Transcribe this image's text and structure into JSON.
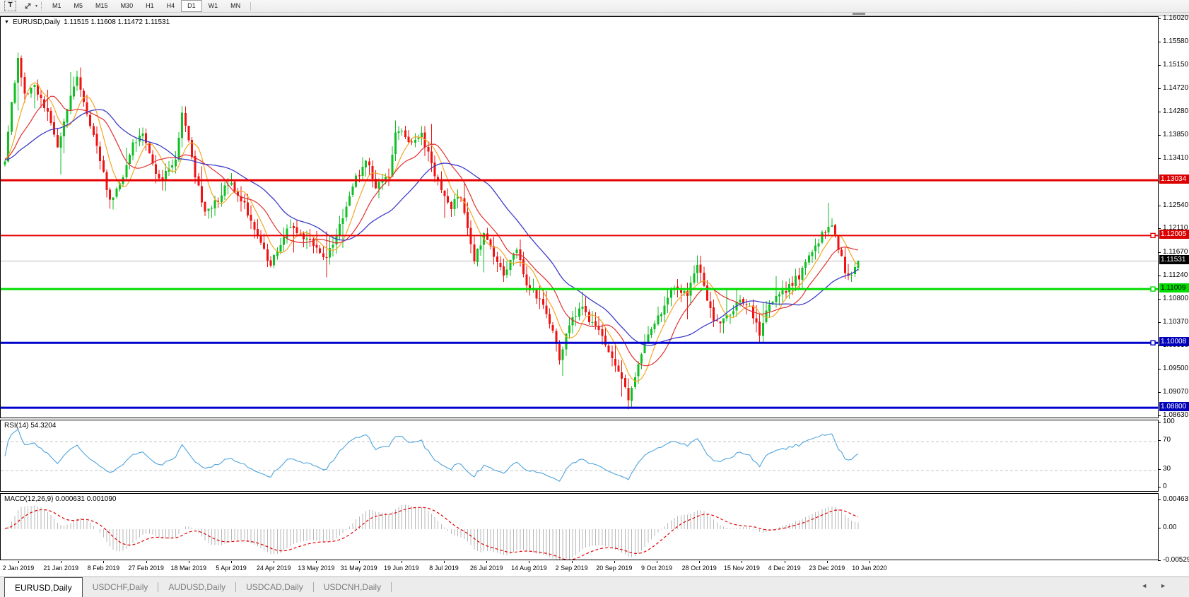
{
  "toolbar": {
    "text_tool_label": "T",
    "timeframes": [
      "M1",
      "M5",
      "M15",
      "M30",
      "H1",
      "H4",
      "D1",
      "W1",
      "MN"
    ],
    "active_timeframe": "D1"
  },
  "icons": {
    "chart_menu_icon": "▼",
    "dropdown_caret_icon": "▾",
    "tab_prev_icon": "◄",
    "tab_next_icon": "►"
  },
  "chart_header": {
    "symbol_label": "EURUSD,Daily",
    "ohlc_label": "1.11515 1.11608 1.11472 1.11531"
  },
  "price_axis": {
    "ticks": [
      "1.16020",
      "1.15580",
      "1.15150",
      "1.14720",
      "1.14280",
      "1.13850",
      "1.13410",
      "1.12980",
      "1.12540",
      "1.12110",
      "1.11670",
      "1.11240",
      "1.10800",
      "1.10370",
      "1.09930",
      "1.09500",
      "1.09070",
      "1.08630"
    ]
  },
  "hlines": [
    {
      "label": "1.13034",
      "value": 1.13034,
      "color": "#e60000",
      "label_bg": "#dd0000",
      "label_fg": "#ffffff",
      "thickness": 3,
      "handle": false
    },
    {
      "label": "1.12005",
      "value": 1.12005,
      "color": "#e60000",
      "label_bg": "#dd0000",
      "label_fg": "#ffffff",
      "thickness": 2,
      "handle": true
    },
    {
      "label": "1.11009",
      "value": 1.11009,
      "color": "#00dd00",
      "label_bg": "#00dd00",
      "label_fg": "#000000",
      "thickness": 3,
      "handle": true
    },
    {
      "label": "1.10008",
      "value": 1.10008,
      "color": "#0000cc",
      "label_bg": "#0000bb",
      "label_fg": "#ffffff",
      "thickness": 3,
      "handle": true
    },
    {
      "label": "1.08800",
      "value": 1.088,
      "color": "#0000cc",
      "label_bg": "#0000bb",
      "label_fg": "#ffffff",
      "thickness": 3,
      "handle": false
    }
  ],
  "current_price": {
    "label": "1.11531",
    "value": 1.11531,
    "label_bg": "#000000",
    "label_fg": "#ffffff",
    "line_color": "#b8b8b8"
  },
  "rsi": {
    "name_label": "RSI(14) 54.3204",
    "levels": [
      {
        "text": "100",
        "value": 100
      },
      {
        "text": "70",
        "value": 70
      },
      {
        "text": "30",
        "value": 30
      },
      {
        "text": "0",
        "value": 0
      }
    ],
    "dashed_levels": [
      70,
      30
    ],
    "line_color": "#4fa3dc"
  },
  "macd": {
    "name_label": "MACD(12,26,9) 0.000631 0.001090",
    "axis_labels": [
      {
        "text": "0.00463",
        "value": 0.00463
      },
      {
        "text": "0.00",
        "value": 0
      },
      {
        "text": "-0.005299",
        "value": -0.005299
      }
    ],
    "histogram_color": "#b7b7b7",
    "signal_color": "#e00000"
  },
  "date_axis": {
    "labels": [
      "2 Jan 2019",
      "21 Jan 2019",
      "8 Feb 2019",
      "27 Feb 2019",
      "18 Mar 2019",
      "5 Apr 2019",
      "24 Apr 2019",
      "13 May 2019",
      "31 May 2019",
      "19 Jun 2019",
      "8 Jul 2019",
      "26 Jul 2019",
      "14 Aug 2019",
      "2 Sep 2019",
      "20 Sep 2019",
      "9 Oct 2019",
      "28 Oct 2019",
      "15 Nov 2019",
      "4 Dec 2019",
      "23 Dec 2019",
      "10 Jan 2020"
    ]
  },
  "tabs": {
    "items": [
      "EURUSD,Daily",
      "USDCHF,Daily",
      "AUDUSD,Daily",
      "USDCAD,Daily",
      "USDCNH,Daily"
    ],
    "active": "EURUSD,Daily"
  },
  "chart_data": {
    "type": "candlestick",
    "symbol": "EURUSD",
    "timeframe": "Daily",
    "visible_range": [
      "2 Jan 2019",
      "10 Jan 2020"
    ],
    "current_ohlc": {
      "open": 1.11515,
      "high": 1.11608,
      "low": 1.11472,
      "close": 1.11531
    },
    "price_range_shown": [
      1.0863,
      1.1602
    ],
    "up_color": "#0fbf23",
    "down_color": "#f01111",
    "ma_lines": [
      {
        "name": "fast-ma",
        "period": 7,
        "color": "#f5a623"
      },
      {
        "name": "mid-ma",
        "period": 14,
        "color": "#e03030"
      },
      {
        "name": "slow-ma",
        "period": 30,
        "color": "#3c3cc8"
      }
    ],
    "warmup_days": 40,
    "price_anchors": [
      [
        0,
        1.132
      ],
      [
        10,
        1.1355
      ],
      [
        20,
        1.133
      ],
      [
        30,
        1.1345
      ],
      [
        40,
        1.134
      ],
      [
        42,
        1.1445
      ],
      [
        44,
        1.1525
      ],
      [
        46,
        1.1465
      ],
      [
        49,
        1.148
      ],
      [
        53,
        1.1425
      ],
      [
        56,
        1.136
      ],
      [
        59,
        1.144
      ],
      [
        62,
        1.15
      ],
      [
        66,
        1.1405
      ],
      [
        69,
        1.134
      ],
      [
        72,
        1.1262
      ],
      [
        75,
        1.1295
      ],
      [
        79,
        1.137
      ],
      [
        82,
        1.1385
      ],
      [
        85,
        1.133
      ],
      [
        88,
        1.1305
      ],
      [
        92,
        1.134
      ],
      [
        94,
        1.1435
      ],
      [
        96,
        1.1375
      ],
      [
        98,
        1.131
      ],
      [
        101,
        1.1245
      ],
      [
        105,
        1.1265
      ],
      [
        108,
        1.13
      ],
      [
        111,
        1.128
      ],
      [
        114,
        1.1245
      ],
      [
        118,
        1.1185
      ],
      [
        121,
        1.1145
      ],
      [
        124,
        1.1185
      ],
      [
        127,
        1.122
      ],
      [
        131,
        1.12
      ],
      [
        134,
        1.1185
      ],
      [
        137,
        1.1155
      ],
      [
        140,
        1.1185
      ],
      [
        144,
        1.1255
      ],
      [
        147,
        1.1305
      ],
      [
        150,
        1.134
      ],
      [
        153,
        1.1295
      ],
      [
        157,
        1.1315
      ],
      [
        159,
        1.139
      ],
      [
        161,
        1.14
      ],
      [
        164,
        1.137
      ],
      [
        167,
        1.139
      ],
      [
        170,
        1.133
      ],
      [
        173,
        1.128
      ],
      [
        176,
        1.1255
      ],
      [
        179,
        1.1275
      ],
      [
        183,
        1.1155
      ],
      [
        186,
        1.1205
      ],
      [
        189,
        1.1165
      ],
      [
        192,
        1.1125
      ],
      [
        196,
        1.118
      ],
      [
        199,
        1.1105
      ],
      [
        202,
        1.109
      ],
      [
        205,
        1.106
      ],
      [
        209,
        1.0975
      ],
      [
        212,
        1.103
      ],
      [
        215,
        1.107
      ],
      [
        218,
        1.1045
      ],
      [
        222,
        1.102
      ],
      [
        225,
        1.0965
      ],
      [
        228,
        1.0935
      ],
      [
        230,
        1.0895
      ],
      [
        233,
        1.096
      ],
      [
        235,
        1.1
      ],
      [
        238,
        1.104
      ],
      [
        241,
        1.107
      ],
      [
        244,
        1.111
      ],
      [
        248,
        1.1085
      ],
      [
        251,
        1.115
      ],
      [
        254,
        1.1075
      ],
      [
        257,
        1.1035
      ],
      [
        261,
        1.1055
      ],
      [
        264,
        1.1085
      ],
      [
        267,
        1.1065
      ],
      [
        270,
        1.1015
      ],
      [
        273,
        1.1075
      ],
      [
        276,
        1.1085
      ],
      [
        279,
        1.1105
      ],
      [
        282,
        1.1125
      ],
      [
        287,
        1.118
      ],
      [
        290,
        1.121
      ],
      [
        292,
        1.1225
      ],
      [
        294,
        1.1175
      ],
      [
        296,
        1.1135
      ],
      [
        298,
        1.1125
      ],
      [
        300,
        1.1153
      ]
    ]
  }
}
